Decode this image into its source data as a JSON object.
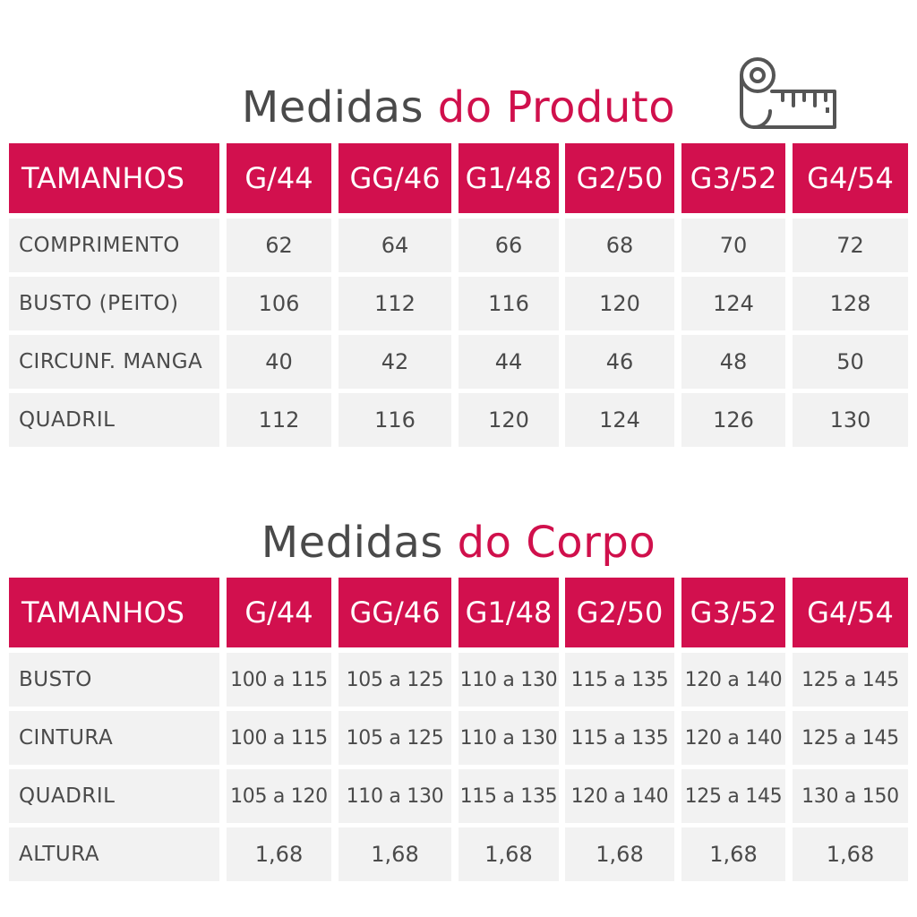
{
  "produto": {
    "title_dark": "Medidas",
    "title_accent": "do Produto",
    "header_label": "TAMANHOS",
    "sizes": [
      "G/44",
      "GG/46",
      "G1/48",
      "G2/50",
      "G3/52",
      "G4/54"
    ],
    "rows": [
      {
        "label": "COMPRIMENTO",
        "values": [
          "62",
          "64",
          "66",
          "68",
          "70",
          "72"
        ]
      },
      {
        "label": "BUSTO (PEITO)",
        "values": [
          "106",
          "112",
          "116",
          "120",
          "124",
          "128"
        ]
      },
      {
        "label": " CIRCUNF. MANGA",
        "values": [
          "40",
          "42",
          "44",
          "46",
          "48",
          "50"
        ]
      },
      {
        "label": "QUADRIL",
        "values": [
          "112",
          "116",
          "120",
          "124",
          "126",
          "130"
        ]
      }
    ]
  },
  "corpo": {
    "title_dark": "Medidas",
    "title_accent": "do Corpo",
    "header_label": "TAMANHOS",
    "sizes": [
      "G/44",
      "GG/46",
      "G1/48",
      "G2/50",
      "G3/52",
      "G4/54"
    ],
    "rows": [
      {
        "label": "BUSTO",
        "values": [
          "100 a 115",
          "105 a 125",
          "110 a 130",
          "115 a 135",
          "120 a 140",
          "125 a 145"
        ]
      },
      {
        "label": "CINTURA",
        "values": [
          "100 a 115",
          "105 a 125",
          "110 a 130",
          "115 a 135",
          "120 a 140",
          "125 a 145"
        ]
      },
      {
        "label": "QUADRIL",
        "values": [
          "105 a 120",
          "110 a 130",
          "115 a 135",
          "120 a 140",
          "125 a 145",
          "130 a 150"
        ]
      },
      {
        "label": "ALTURA",
        "values": [
          "1,68",
          "1,68",
          "1,68",
          "1,68",
          "1,68",
          "1,68"
        ]
      }
    ]
  },
  "icons": {
    "measure": "measuring-tape-icon"
  },
  "colors": {
    "accent": "#d2104e",
    "text": "#4a4a4a",
    "cell_bg": "#f2f2f2"
  }
}
